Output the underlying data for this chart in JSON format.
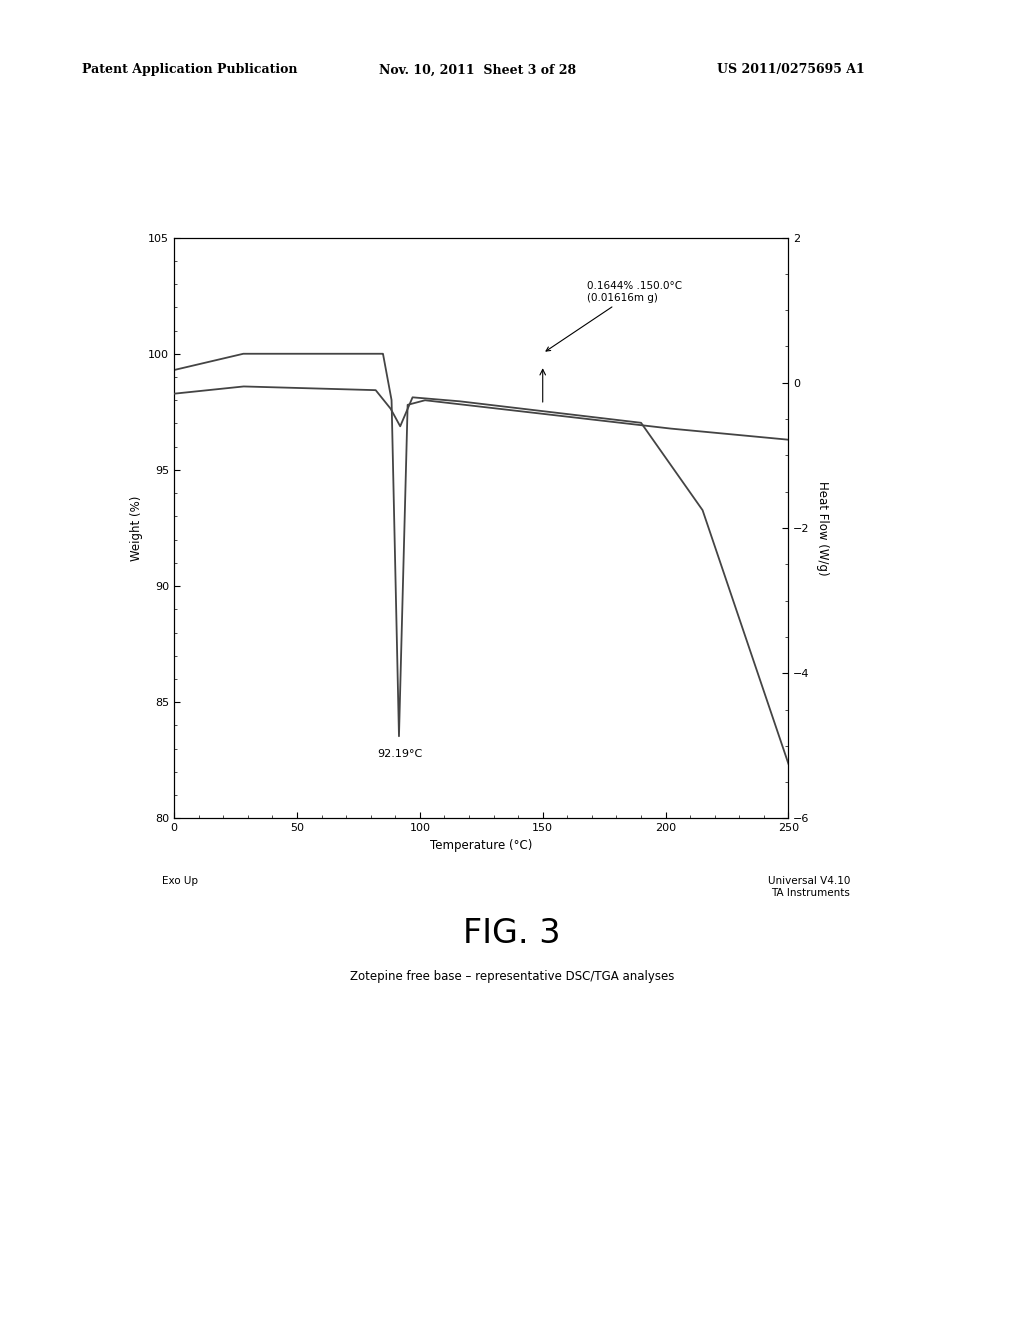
{
  "header_left": "Patent Application Publication",
  "header_mid": "Nov. 10, 2011  Sheet 3 of 28",
  "header_right": "US 2011/0275695 A1",
  "fig_label": "FIG. 3",
  "fig_caption": "Zotepine free base – representative DSC/TGA analyses",
  "xlabel": "Temperature (°C)",
  "ylabel_left": "Weight (%)",
  "ylabel_right": "Heat Flow (W/g)",
  "xlim": [
    0,
    250
  ],
  "ylim_left": [
    80,
    105
  ],
  "ylim_right": [
    -6,
    2
  ],
  "xticks": [
    0,
    50,
    100,
    150,
    200,
    250
  ],
  "yticks_left": [
    80,
    85,
    90,
    95,
    100,
    105
  ],
  "yticks_right": [
    -6,
    -4,
    -2,
    0,
    2
  ],
  "annotation1_text": "0.1644% .150.0°C\n(0.01616m g)",
  "bottom_left": "Exo Up",
  "bottom_right": "Universal V4.10\nTA Instruments",
  "background_color": "#ffffff",
  "line_color": "#444444"
}
